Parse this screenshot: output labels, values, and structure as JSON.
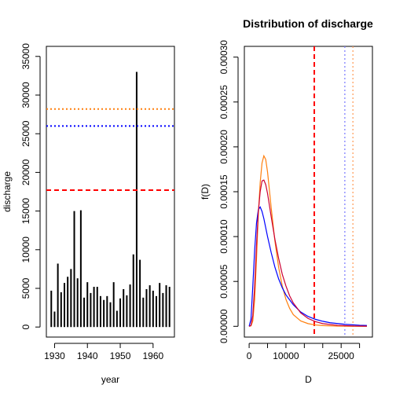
{
  "chart_data": [
    {
      "type": "bar",
      "title": "",
      "xlabel": "year",
      "ylabel": "discharge",
      "xlim": [
        1927.5,
        1966.5
      ],
      "ylim": [
        -1300,
        36300
      ],
      "x_ticks": [
        1930,
        1940,
        1950,
        1960
      ],
      "x_tick_labels": [
        "1930",
        "1940",
        "1950",
        "1960"
      ],
      "y_ticks": [
        0,
        5000,
        10000,
        15000,
        20000,
        25000,
        30000,
        35000
      ],
      "y_tick_labels": [
        "0",
        "5000",
        "10000",
        "15000",
        "20000",
        "25000",
        "30000",
        "35000"
      ],
      "grid": false,
      "x": [
        1929,
        1930,
        1931,
        1932,
        1933,
        1934,
        1935,
        1936,
        1937,
        1938,
        1939,
        1940,
        1941,
        1942,
        1943,
        1944,
        1945,
        1946,
        1947,
        1948,
        1949,
        1950,
        1951,
        1952,
        1953,
        1954,
        1955,
        1956,
        1957,
        1958,
        1959,
        1960,
        1961,
        1962,
        1963,
        1964,
        1965
      ],
      "values": [
        4700,
        2000,
        8200,
        4500,
        5700,
        6500,
        7500,
        15000,
        6300,
        15100,
        3800,
        5800,
        4400,
        5200,
        5200,
        4000,
        3500,
        4000,
        3200,
        5800,
        2100,
        3700,
        4900,
        4100,
        5500,
        9400,
        33000,
        8700,
        3800,
        4900,
        5400,
        4700,
        4000,
        5700,
        4400,
        5400,
        5200
      ],
      "hlines": [
        {
          "y": 28200,
          "color": "#FF7F0E",
          "style": "dotted"
        },
        {
          "y": 26000,
          "color": "#0000FF",
          "style": "dotted"
        },
        {
          "y": 17700,
          "color": "#0000FF",
          "style": "dashed"
        },
        {
          "y": 17700,
          "color": "#FF0000",
          "style": "dashed"
        }
      ]
    },
    {
      "type": "line",
      "title": "Distribution of discharge",
      "xlabel": "D",
      "ylabel": "f(D)",
      "xlim": [
        -1300,
        33500
      ],
      "ylim": [
        -1.2e-05,
        0.000312
      ],
      "x_ticks": [
        0,
        10000,
        25000
      ],
      "x_tick_labels": [
        "0",
        "10000",
        "25000"
      ],
      "y_ticks": [
        0,
        5e-05,
        0.0001,
        0.00015,
        0.0002,
        0.00025,
        0.0003
      ],
      "y_tick_labels": [
        "0.00000",
        "0.00005",
        "0.00010",
        "0.00015",
        "0.00020",
        "0.00025",
        "0.00030"
      ],
      "grid": false,
      "series": [
        {
          "color": "#FF7F0E",
          "x": [
            0,
            500,
            1000,
            1500,
            2000,
            2500,
            3000,
            3500,
            4000,
            4500,
            5000,
            5500,
            6000,
            7000,
            8000,
            9000,
            10000,
            11000,
            12000,
            14000,
            16000,
            18000,
            20000,
            24000,
            28000,
            32000
          ],
          "y": [
            0,
            5e-07,
            6e-06,
            3e-05,
            7.5e-05,
            0.000125,
            0.00016,
            0.000182,
            0.00019,
            0.000186,
            0.000172,
            0.000152,
            0.000132,
            9.5e-05,
            6.6e-05,
            4.5e-05,
            3e-05,
            2e-05,
            1.3e-05,
            6e-06,
            3e-06,
            1.5e-06,
            8e-07,
            2e-07,
            6e-08,
            2e-08
          ]
        },
        {
          "color": "#0000FF",
          "x": [
            0,
            500,
            1000,
            1500,
            2000,
            2500,
            3000,
            3500,
            4000,
            5000,
            6000,
            7000,
            8000,
            9000,
            10000,
            12000,
            14000,
            16000,
            18000,
            20000,
            22000,
            26000,
            30000,
            32000
          ],
          "y": [
            0,
            8e-06,
            4.5e-05,
            8.5e-05,
            0.000115,
            0.00013,
            0.000133,
            0.000128,
            0.00012,
            0.0001,
            8.2e-05,
            6.6e-05,
            5.3e-05,
            4.3e-05,
            3.5e-05,
            2.4e-05,
            1.6e-05,
            1.1e-05,
            7.8e-06,
            5.6e-06,
            4e-06,
            2.2e-06,
            1.2e-06,
            9e-07
          ]
        },
        {
          "color": "#CC0033",
          "x": [
            0,
            500,
            1000,
            1500,
            2000,
            2500,
            3000,
            3500,
            4000,
            4500,
            5000,
            6000,
            7000,
            8000,
            9000,
            10000,
            11000,
            12000,
            14000,
            16000,
            18000,
            20000,
            24000,
            28000,
            32000
          ],
          "y": [
            0,
            1e-06,
            1.2e-05,
            4.5e-05,
            9e-05,
            0.000128,
            0.00015,
            0.000162,
            0.000163,
            0.000158,
            0.000148,
            0.000122,
            9.7e-05,
            7.6e-05,
            5.8e-05,
            4.5e-05,
            3.4e-05,
            2.6e-05,
            1.5e-05,
            8.8e-06,
            5.2e-06,
            3e-06,
            1.1e-06,
            4e-07,
            1.5e-07
          ]
        }
      ],
      "vlines": [
        {
          "x": 17700,
          "color": "#0000FF",
          "style": "dashed"
        },
        {
          "x": 17700,
          "color": "#FF0000",
          "style": "dashed"
        },
        {
          "x": 26000,
          "color": "#8080FF",
          "style": "dotted"
        },
        {
          "x": 28200,
          "color": "#FFA060",
          "style": "dotted"
        }
      ]
    }
  ]
}
